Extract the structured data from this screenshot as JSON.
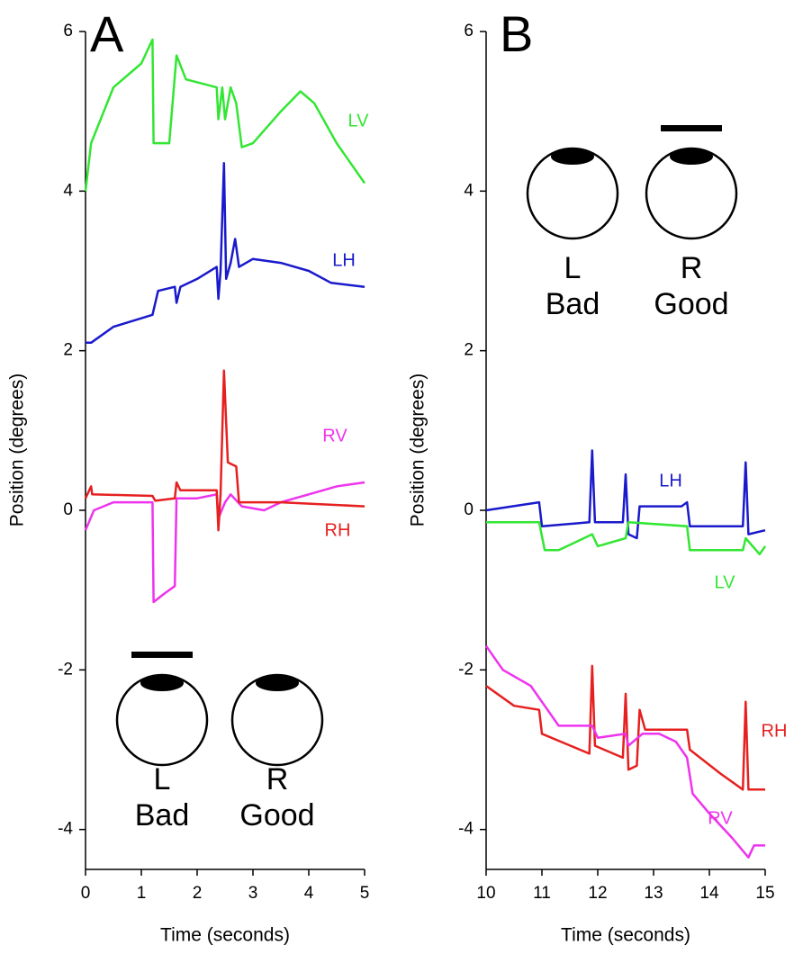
{
  "chart_data": [
    {
      "type": "line",
      "title": "A",
      "xlabel": "Time (seconds)",
      "ylabel": "Position (degrees)",
      "xlim": [
        0,
        5
      ],
      "ylim": [
        -4.5,
        6
      ],
      "xticks": [
        0,
        1,
        2,
        3,
        4,
        5
      ],
      "yticks": [
        -4,
        -2,
        0,
        2,
        4,
        6
      ],
      "series": [
        {
          "name": "LV",
          "color": "#33e633",
          "x": [
            0,
            0.1,
            0.5,
            1.0,
            1.2,
            1.22,
            1.5,
            1.63,
            1.8,
            2.35,
            2.38,
            2.45,
            2.5,
            2.6,
            2.7,
            2.8,
            3.0,
            3.5,
            3.85,
            4.1,
            4.5,
            5.0
          ],
          "values": [
            4.0,
            4.6,
            5.3,
            5.6,
            5.9,
            4.6,
            4.6,
            5.7,
            5.4,
            5.3,
            4.9,
            5.3,
            4.9,
            5.3,
            5.1,
            4.55,
            4.6,
            5.0,
            5.25,
            5.1,
            4.6,
            4.1
          ]
        },
        {
          "name": "LH",
          "color": "#1a1acc",
          "x": [
            0,
            0.1,
            0.5,
            1.2,
            1.25,
            1.3,
            1.6,
            1.63,
            1.7,
            2.0,
            2.35,
            2.38,
            2.42,
            2.48,
            2.52,
            2.6,
            2.68,
            2.75,
            3.0,
            3.5,
            4.0,
            4.4,
            5.0
          ],
          "values": [
            2.1,
            2.1,
            2.3,
            2.45,
            2.6,
            2.75,
            2.8,
            2.6,
            2.8,
            2.9,
            3.05,
            2.65,
            3.0,
            4.35,
            2.9,
            3.1,
            3.4,
            3.05,
            3.15,
            3.1,
            3.0,
            2.85,
            2.8
          ]
        },
        {
          "name": "RV",
          "color": "#ee33ee",
          "x": [
            0,
            0.15,
            0.5,
            1.2,
            1.22,
            1.4,
            1.6,
            1.63,
            2.0,
            2.35,
            2.38,
            2.5,
            2.6,
            2.8,
            3.2,
            3.5,
            4.0,
            4.5,
            5.0
          ],
          "values": [
            -0.25,
            0.0,
            0.1,
            0.1,
            -1.15,
            -1.05,
            -0.95,
            0.15,
            0.15,
            0.2,
            -0.1,
            0.1,
            0.2,
            0.05,
            0.0,
            0.1,
            0.2,
            0.3,
            0.35
          ]
        },
        {
          "name": "RH",
          "color": "#e62020",
          "x": [
            0,
            0.1,
            0.12,
            1.2,
            1.25,
            1.6,
            1.63,
            1.7,
            2.35,
            2.38,
            2.42,
            2.48,
            2.55,
            2.7,
            2.75,
            3.5,
            5.0
          ],
          "values": [
            0.15,
            0.3,
            0.2,
            0.18,
            0.12,
            0.15,
            0.35,
            0.25,
            0.25,
            -0.25,
            0.2,
            1.75,
            0.6,
            0.55,
            0.1,
            0.1,
            0.05
          ]
        }
      ],
      "eyes": [
        {
          "eye": "L",
          "condition": "Bad",
          "covered": true
        },
        {
          "eye": "R",
          "condition": "Good",
          "covered": false
        }
      ]
    },
    {
      "type": "line",
      "title": "B",
      "xlabel": "Time (seconds)",
      "ylabel": "Position (degrees)",
      "xlim": [
        10,
        15
      ],
      "ylim": [
        -4.5,
        6
      ],
      "xticks": [
        10,
        11,
        12,
        13,
        14,
        15
      ],
      "yticks": [
        -4,
        -2,
        0,
        2,
        4,
        6
      ],
      "series": [
        {
          "name": "LH",
          "color": "#1a1acc",
          "x": [
            10,
            10.95,
            11.0,
            11.85,
            11.9,
            11.95,
            12.45,
            12.5,
            12.55,
            12.7,
            12.75,
            13.5,
            13.6,
            13.65,
            14.6,
            14.65,
            14.7,
            15
          ],
          "values": [
            0,
            0.1,
            -0.2,
            -0.15,
            0.75,
            -0.15,
            -0.15,
            0.45,
            -0.3,
            -0.35,
            0.05,
            0.05,
            0.1,
            -0.2,
            -0.2,
            0.6,
            -0.3,
            -0.25
          ]
        },
        {
          "name": "LV",
          "color": "#33e633",
          "x": [
            10,
            10.95,
            11.05,
            11.3,
            11.9,
            12.0,
            12.5,
            12.55,
            13.6,
            13.65,
            14.6,
            14.65,
            14.9,
            15
          ],
          "values": [
            -0.15,
            -0.15,
            -0.5,
            -0.5,
            -0.3,
            -0.45,
            -0.35,
            -0.15,
            -0.2,
            -0.5,
            -0.5,
            -0.35,
            -0.55,
            -0.45
          ]
        },
        {
          "name": "RH",
          "color": "#e62020",
          "x": [
            10,
            10.5,
            10.95,
            11.0,
            11.85,
            11.9,
            11.95,
            12.45,
            12.5,
            12.55,
            12.7,
            12.75,
            12.85,
            13.6,
            13.65,
            14.2,
            14.6,
            14.65,
            14.7,
            15
          ],
          "values": [
            -2.2,
            -2.45,
            -2.5,
            -2.8,
            -3.05,
            -1.95,
            -2.95,
            -3.1,
            -2.3,
            -3.25,
            -3.2,
            -2.5,
            -2.75,
            -2.75,
            -3.0,
            -3.3,
            -3.5,
            -2.4,
            -3.5,
            -3.5
          ]
        },
        {
          "name": "RV",
          "color": "#ee33ee",
          "x": [
            10,
            10.3,
            10.8,
            11.0,
            11.3,
            11.9,
            12.0,
            12.5,
            12.55,
            12.8,
            13.1,
            13.4,
            13.6,
            13.7,
            14.0,
            14.4,
            14.7,
            14.8,
            15
          ],
          "values": [
            -1.7,
            -2.0,
            -2.2,
            -2.4,
            -2.7,
            -2.7,
            -2.85,
            -2.8,
            -2.95,
            -2.8,
            -2.8,
            -2.9,
            -3.1,
            -3.55,
            -3.8,
            -4.1,
            -4.35,
            -4.2,
            -4.2
          ]
        }
      ],
      "eyes": [
        {
          "eye": "L",
          "condition": "Bad",
          "covered": false
        },
        {
          "eye": "R",
          "condition": "Good",
          "covered": true
        }
      ]
    }
  ]
}
